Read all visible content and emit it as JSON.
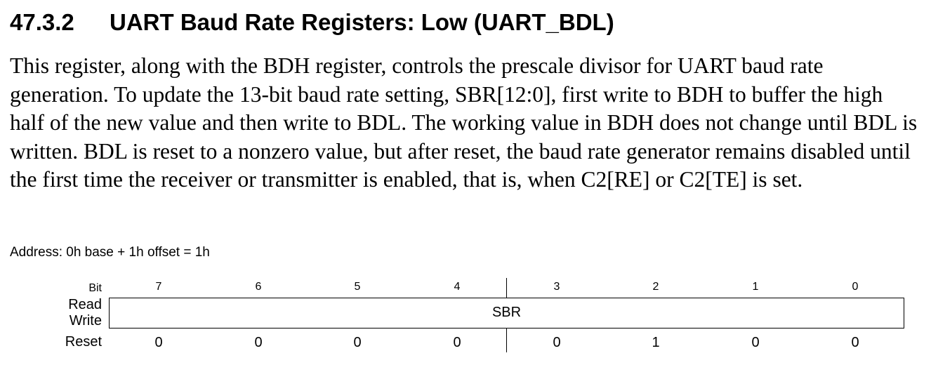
{
  "section": {
    "number": "47.3.2",
    "title": "UART Baud Rate Registers: Low (UART_BDL)"
  },
  "description": "This register, along with the BDH register, controls the prescale divisor for UART baud rate generation. To update the 13-bit baud rate setting, SBR[12:0], first write to BDH to buffer the high half of the new value and then write to BDL. The working value in BDH does not change until BDL is written. BDL is reset to a nonzero value, but after reset, the baud rate generator remains disabled until the first time the receiver or transmitter is enabled, that is, when C2[RE] or C2[TE] is set.",
  "address": "Address: 0h base + 1h offset = 1h",
  "register": {
    "labels": {
      "bit": "Bit",
      "read": "Read",
      "write": "Write",
      "reset": "Reset"
    },
    "bits": [
      "7",
      "6",
      "5",
      "4",
      "3",
      "2",
      "1",
      "0"
    ],
    "field": "SBR",
    "reset_values": [
      "0",
      "0",
      "0",
      "0",
      "0",
      "1",
      "0",
      "0"
    ]
  }
}
